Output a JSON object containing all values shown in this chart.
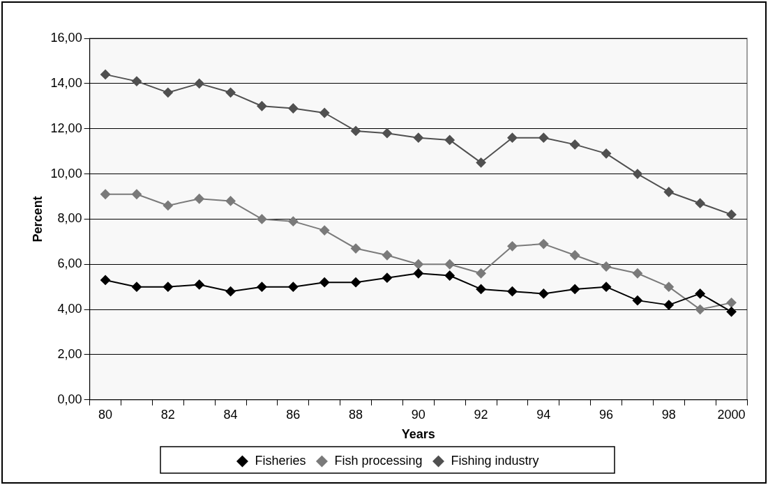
{
  "chart_data": {
    "type": "line",
    "xlabel": "Years",
    "ylabel": "Percent",
    "categories": [
      "80",
      null,
      "82",
      null,
      "84",
      null,
      "86",
      null,
      "88",
      null,
      "90",
      null,
      "92",
      null,
      "94",
      null,
      "96",
      null,
      "98",
      null,
      "2000"
    ],
    "series": [
      {
        "name": "Fisheries",
        "color": "#000000",
        "values": [
          5.3,
          5.0,
          5.0,
          5.1,
          4.8,
          5.0,
          5.0,
          5.2,
          5.2,
          5.4,
          5.6,
          5.5,
          4.9,
          4.8,
          4.7,
          4.9,
          5.0,
          4.4,
          4.2,
          4.7,
          3.9
        ]
      },
      {
        "name": "Fish processing",
        "color": "#7a7a7a",
        "values": [
          9.1,
          9.1,
          8.6,
          8.9,
          8.8,
          8.0,
          7.9,
          7.5,
          6.7,
          6.4,
          6.0,
          6.0,
          5.6,
          6.8,
          6.9,
          6.4,
          5.9,
          5.6,
          5.0,
          4.0,
          4.3
        ]
      },
      {
        "name": "Fishing industry",
        "color": "#505050",
        "values": [
          14.4,
          14.1,
          13.6,
          14.0,
          13.6,
          13.0,
          12.9,
          12.7,
          11.9,
          11.8,
          11.6,
          11.5,
          10.5,
          11.6,
          11.6,
          11.3,
          10.9,
          10.0,
          9.2,
          8.7,
          8.2
        ]
      }
    ],
    "ylim": [
      0,
      16
    ],
    "yticks": [
      {
        "value": 0,
        "label": "0,00"
      },
      {
        "value": 2,
        "label": "2,00"
      },
      {
        "value": 4,
        "label": "4,00"
      },
      {
        "value": 6,
        "label": "6,00"
      },
      {
        "value": 8,
        "label": "8,00"
      },
      {
        "value": 10,
        "label": "10,00"
      },
      {
        "value": 12,
        "label": "12,00"
      },
      {
        "value": 14,
        "label": "14,00"
      },
      {
        "value": 16,
        "label": "16,00"
      }
    ],
    "grid": "y",
    "legend": "bottom",
    "marker": "diamond",
    "line_style": "solid"
  }
}
